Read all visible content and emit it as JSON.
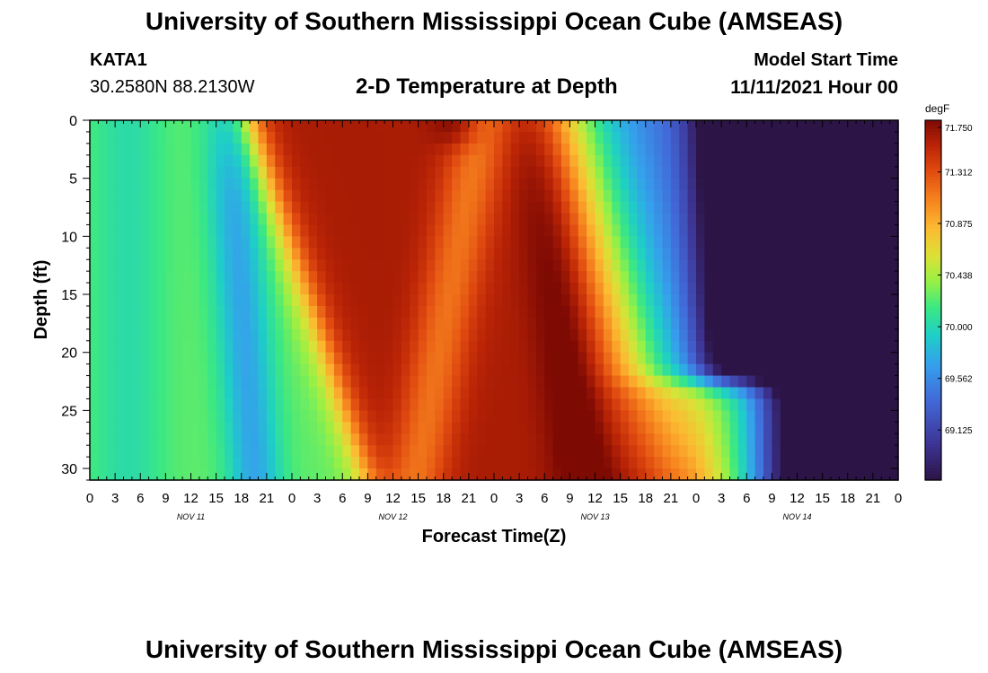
{
  "page": {
    "title": "University of Southern Mississippi Ocean Cube (AMSEAS)",
    "title_repeat": "University of Southern Mississippi Ocean Cube (AMSEAS)",
    "station": "KATA1",
    "coordinates": "30.2580N  88.2130W",
    "plot_title": "2-D Temperature at Depth",
    "model_start_label": "Model Start Time",
    "model_start_value": "11/11/2021 Hour 00"
  },
  "chart_data": {
    "type": "heatmap",
    "title": "2-D Temperature at Depth",
    "xlabel": "Forecast Time(Z)",
    "ylabel": "Depth (ft)",
    "x_unit": "forecast hour",
    "xlim": [
      0,
      96
    ],
    "ylim": [
      31,
      0
    ],
    "x_ticks": [
      0,
      3,
      6,
      9,
      12,
      15,
      18,
      21,
      24,
      27,
      30,
      33,
      36,
      39,
      42,
      45,
      48,
      51,
      54,
      57,
      60,
      63,
      66,
      69,
      72,
      75,
      78,
      81,
      84,
      87,
      90,
      93,
      96
    ],
    "x_tick_labels": [
      "0",
      "3",
      "6",
      "9",
      "12",
      "15",
      "18",
      "21",
      "0",
      "3",
      "6",
      "9",
      "12",
      "15",
      "18",
      "21",
      "0",
      "3",
      "6",
      "9",
      "12",
      "15",
      "18",
      "21",
      "0",
      "3",
      "6",
      "9",
      "12",
      "15",
      "18",
      "21",
      "0"
    ],
    "y_ticks": [
      0,
      5,
      10,
      15,
      20,
      25,
      30
    ],
    "y_tick_labels": [
      "0",
      "5",
      "10",
      "15",
      "20",
      "25",
      "30"
    ],
    "day_labels": [
      {
        "text": "NOV 11",
        "hour": 12
      },
      {
        "text": "NOV 12",
        "hour": 36
      },
      {
        "text": "NOV 13",
        "hour": 60
      },
      {
        "text": "NOV 14",
        "hour": 84
      }
    ],
    "colorbar": {
      "unit": "degF",
      "min": 68.7,
      "max": 71.75,
      "ticks": [
        71.75,
        71.312,
        70.875,
        70.438,
        70.0,
        69.562,
        69.125
      ],
      "tick_labels": [
        "71.750",
        "71.312",
        "70.875",
        "70.438",
        "70.000",
        "69.562",
        "69.125"
      ]
    },
    "grid": false,
    "z_unit": "degF"
  }
}
